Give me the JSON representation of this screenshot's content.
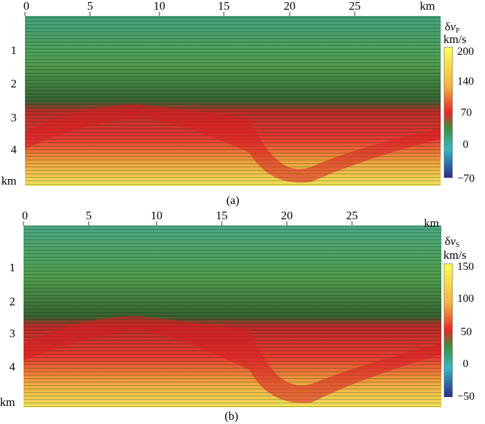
{
  "panels": [
    {
      "id": "a",
      "caption": "(a)",
      "x_unit": "km",
      "y_unit": "km",
      "x_ticks": [
        "0",
        "5",
        "10",
        "15",
        "20",
        "25"
      ],
      "y_ticks": [
        "1",
        "2",
        "3",
        "4"
      ],
      "colorbar": {
        "symbol": "δ",
        "var": "v",
        "sub": "P",
        "unit": "km/s",
        "ticks": [
          "200",
          "140",
          "70",
          "0",
          "−70"
        ],
        "values": [
          200,
          140,
          70,
          0,
          -70
        ]
      }
    },
    {
      "id": "b",
      "caption": "(b)",
      "x_unit": "km",
      "y_unit": "km",
      "x_ticks": [
        "0",
        "5",
        "10",
        "15",
        "20",
        "25"
      ],
      "y_ticks": [
        "1",
        "2",
        "3",
        "4"
      ],
      "colorbar": {
        "symbol": "δ",
        "var": "v",
        "sub": "S",
        "unit": "km/s",
        "ticks": [
          "150",
          "100",
          "50",
          "0",
          "−50"
        ],
        "values": [
          150,
          100,
          50,
          0,
          -50
        ]
      }
    }
  ],
  "colors": {
    "colormap": [
      "#ffff55",
      "#f4c23a",
      "#e8252a",
      "#3e8e3c",
      "#36b8c0",
      "#2a2a8c"
    ]
  }
}
